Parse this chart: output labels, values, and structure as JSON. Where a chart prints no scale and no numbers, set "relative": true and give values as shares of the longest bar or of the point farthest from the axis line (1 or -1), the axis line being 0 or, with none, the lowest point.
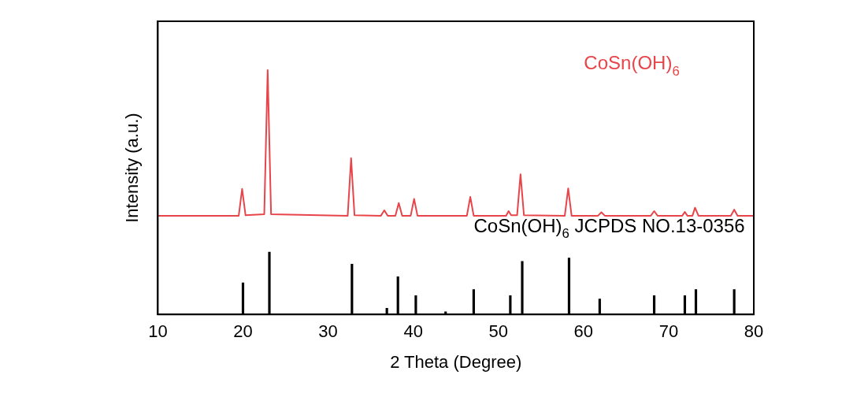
{
  "chart_data": {
    "type": "line",
    "xlabel": "2 Theta (Degree)",
    "ylabel": "Intensity (a.u.)",
    "relative": true,
    "xlim": [
      10,
      80
    ],
    "xticks": [
      10,
      20,
      30,
      40,
      50,
      60,
      70,
      80
    ],
    "grid": false,
    "legend": false,
    "series": [
      {
        "name": "CoSn(OH)$_{6}$",
        "color": "#e8454a",
        "x": [
          10,
          19.5,
          19.9,
          20.3,
          22.5,
          22.9,
          23.3,
          32.3,
          32.7,
          33.1,
          36.2,
          36.6,
          37.0,
          37.9,
          38.3,
          38.7,
          39.7,
          40.1,
          40.5,
          46.3,
          46.7,
          47.1,
          50.9,
          51.2,
          51.5,
          52.2,
          52.6,
          53.0,
          57.8,
          58.2,
          58.6,
          61.7,
          62.1,
          62.5,
          67.9,
          68.3,
          68.7,
          71.6,
          71.9,
          72.2,
          72.8,
          73.1,
          73.5,
          77.3,
          77.7,
          78.1,
          80
        ],
        "values": [
          0.404,
          0.404,
          0.514,
          0.406,
          0.41,
          1.0,
          0.41,
          0.404,
          0.64,
          0.406,
          0.404,
          0.426,
          0.404,
          0.404,
          0.456,
          0.404,
          0.404,
          0.473,
          0.404,
          0.404,
          0.481,
          0.404,
          0.404,
          0.423,
          0.406,
          0.406,
          0.574,
          0.406,
          0.404,
          0.516,
          0.404,
          0.404,
          0.418,
          0.404,
          0.404,
          0.423,
          0.404,
          0.404,
          0.42,
          0.404,
          0.404,
          0.437,
          0.404,
          0.404,
          0.429,
          0.404,
          0.404
        ]
      },
      {
        "name": "CoSn(OH)$_{6}$ JCPDS NO.13-0356",
        "type": "bar",
        "color": "#000000",
        "x": [
          20.0,
          23.1,
          32.8,
          36.9,
          38.2,
          40.3,
          43.8,
          47.1,
          51.4,
          52.8,
          58.3,
          61.9,
          68.3,
          71.9,
          73.2,
          77.7
        ],
        "values": [
          0.129,
          0.255,
          0.206,
          0.025,
          0.154,
          0.077,
          0.011,
          0.102,
          0.077,
          0.217,
          0.231,
          0.063,
          0.077,
          0.077,
          0.102,
          0.102
        ]
      }
    ]
  }
}
